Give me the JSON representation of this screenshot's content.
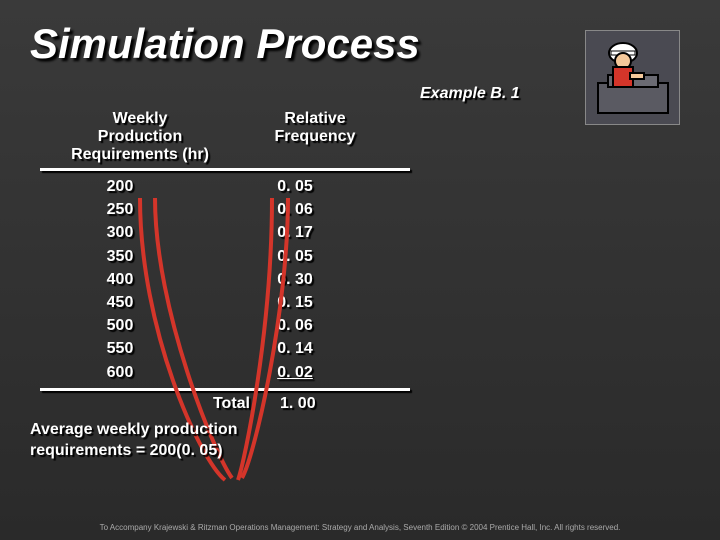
{
  "title": "Simulation Process",
  "example_label": "Example B. 1",
  "table": {
    "header_col1": "Weekly\nProduction\nRequirements (hr)",
    "header_col2": "Relative\nFrequency",
    "rows": [
      {
        "req": "200",
        "freq": "0. 05"
      },
      {
        "req": "250",
        "freq": "0. 06"
      },
      {
        "req": "300",
        "freq": "0. 17"
      },
      {
        "req": "350",
        "freq": "0. 05"
      },
      {
        "req": "400",
        "freq": "0. 30"
      },
      {
        "req": "450",
        "freq": "0. 15"
      },
      {
        "req": "500",
        "freq": "0. 06"
      },
      {
        "req": "550",
        "freq": "0. 14"
      },
      {
        "req": "600",
        "freq": "0. 02"
      }
    ],
    "total_label": "Total",
    "total_value": "1. 00",
    "rule_color": "#ffffff"
  },
  "curves": {
    "color": "#d4352a",
    "stroke_width": 4,
    "paths": [
      "M 140 198 C 140 330, 200 460, 225 480",
      "M 155 198 C 155 310, 215 455, 232 478",
      "M 272 198 C 272 330, 245 460, 238 480",
      "M 288 198 C 288 310, 255 455, 242 478"
    ]
  },
  "summary_line1": "Average weekly production",
  "summary_line2": "requirements = 200(0. 05)",
  "footer": "To Accompany Krajewski & Ritzman Operations Management: Strategy and Analysis, Seventh Edition © 2004 Prentice Hall, Inc. All rights reserved.",
  "icon": {
    "bg": "#4a4a52",
    "helmet": "#ffffff",
    "face": "#f4c89a",
    "shirt": "#d4352a",
    "machine": "#5a5a62"
  }
}
